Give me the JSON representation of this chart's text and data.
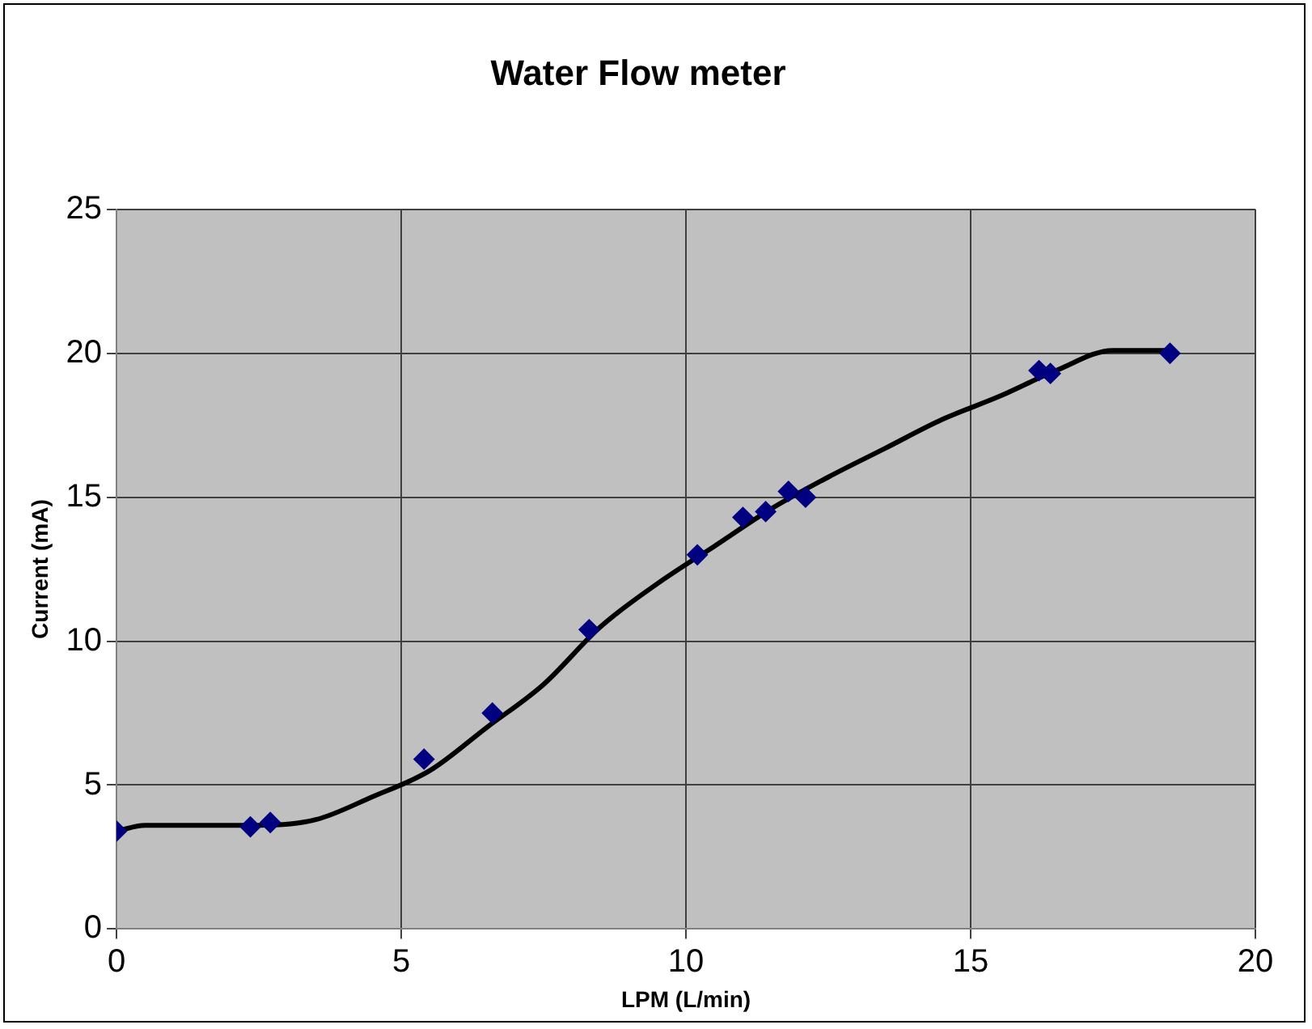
{
  "chart_data": {
    "type": "scatter",
    "title": "Water Flow meter",
    "xlabel": "LPM (L/min)",
    "ylabel": "Current (mA)",
    "xlim": [
      0,
      20
    ],
    "xticks": [
      0,
      5,
      10,
      15,
      20
    ],
    "ylim": [
      0,
      25
    ],
    "yticks": [
      0,
      5,
      10,
      15,
      20,
      25
    ],
    "grid": true,
    "legend": false,
    "series": [
      {
        "color": "#000080",
        "marker": "diamond",
        "x": [
          0,
          2.35,
          2.7,
          5.4,
          6.6,
          8.3,
          10.2,
          11.0,
          11.4,
          11.8,
          12.1,
          16.2,
          16.4,
          18.5
        ],
        "values": [
          3.4,
          3.55,
          3.7,
          5.9,
          7.5,
          10.4,
          13.0,
          14.3,
          14.5,
          15.2,
          15.0,
          19.4,
          19.3,
          20.0
        ]
      },
      {
        "type": "line",
        "color": "#000000",
        "marker": "none",
        "line_style": "solid",
        "x": [
          0,
          0.5,
          2.5,
          3.5,
          4.5,
          5.5,
          6.5,
          7.5,
          8.5,
          9.5,
          10.5,
          11.5,
          12.5,
          13.5,
          14.5,
          15.5,
          16.5,
          17.5,
          18.5
        ],
        "values": [
          3.4,
          3.6,
          3.6,
          3.8,
          4.6,
          5.5,
          7.0,
          8.5,
          10.5,
          12.0,
          13.3,
          14.6,
          15.7,
          16.7,
          17.7,
          18.5,
          19.4,
          20.1,
          20.1
        ]
      }
    ]
  }
}
